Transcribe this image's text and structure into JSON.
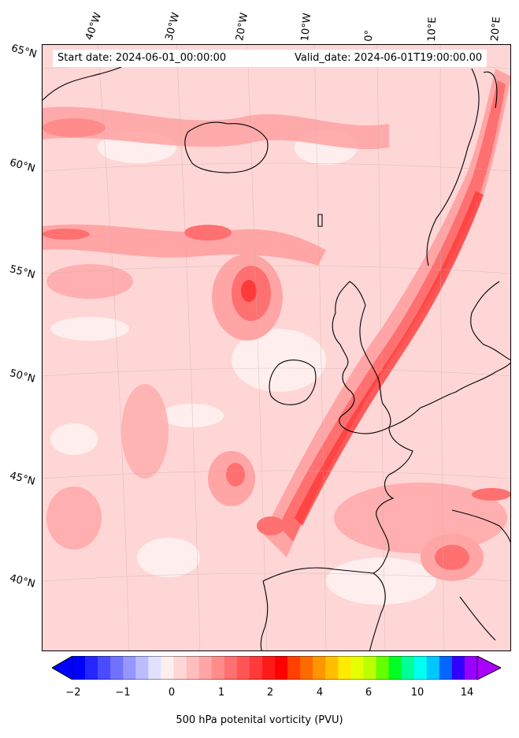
{
  "header": {
    "start_date": "Start date: 2024-06-01_00:00:00",
    "valid_date": "Valid_date: 2024-06-01T19:00:00.00"
  },
  "map": {
    "longitude_labels": [
      "40°W",
      "30°W",
      "20°W",
      "10°W",
      "0°",
      "10°E",
      "20°E"
    ],
    "latitude_labels": [
      "65°N",
      "60°N",
      "55°N",
      "50°N",
      "45°N",
      "40°N"
    ],
    "field_colors": {
      "background": "#ffd6d6",
      "light": "#ffeeee",
      "medium": "#ffa5a5",
      "strong": "#ff7070",
      "max": "#ff3a3a"
    },
    "coastline_color": "#000000"
  },
  "colorbar": {
    "label": "500 hPa potenital vorticity (PVU)",
    "tick_labels": [
      "−2",
      "−1",
      "0",
      "1",
      "2",
      "4",
      "6",
      "10",
      "14"
    ],
    "colors": [
      "#0000ff",
      "#2626ff",
      "#4b4bff",
      "#7171ff",
      "#9696ff",
      "#bcbcff",
      "#e1e1ff",
      "#ffeeee",
      "#ffd6d6",
      "#ffbebe",
      "#ffa5a5",
      "#ff8b8b",
      "#ff7070",
      "#ff5555",
      "#ff3a3a",
      "#ff1a1a",
      "#ff0000",
      "#ff4000",
      "#ff6a00",
      "#ff9500",
      "#ffbf00",
      "#ffea00",
      "#e6ff00",
      "#bbff00",
      "#66ff00",
      "#00ff22",
      "#00ff99",
      "#00ffee",
      "#00c8ff",
      "#0066ff",
      "#3300ff",
      "#9900ff"
    ],
    "under_color": "#0000ff",
    "over_color": "#aa00ff"
  }
}
